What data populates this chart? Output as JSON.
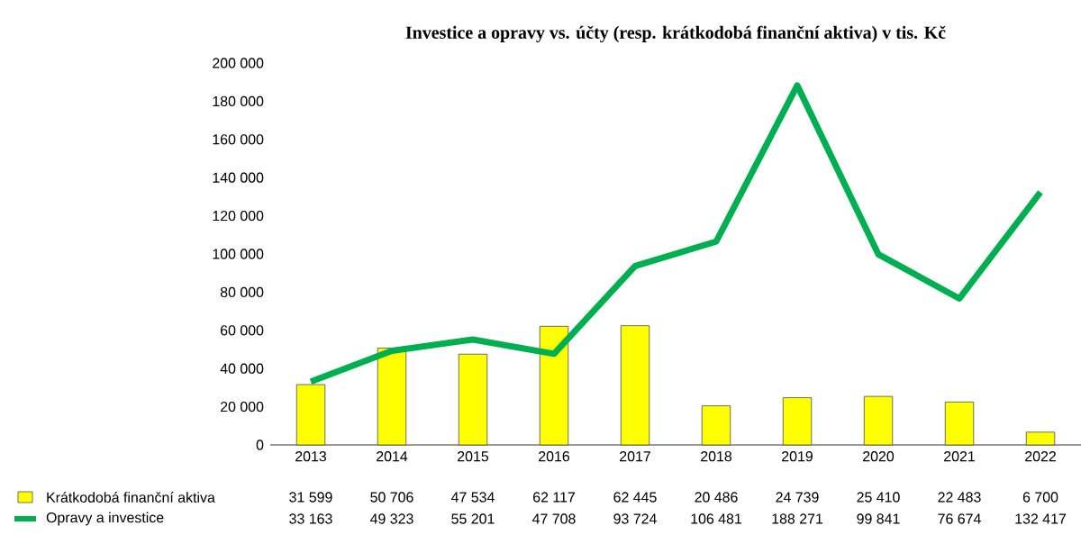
{
  "chart_data": {
    "type": "bar",
    "title": "Investice a opravy vs. účty (resp. krátkodobá finanční aktiva) v tis. Kč",
    "categories": [
      "2013",
      "2014",
      "2015",
      "2016",
      "2017",
      "2018",
      "2019",
      "2020",
      "2021",
      "2022"
    ],
    "series": [
      {
        "name": "Krátkodobá finanční aktiva",
        "color": "#ffff00",
        "values": [
          31599,
          50706,
          47534,
          62117,
          62445,
          20486,
          24739,
          25410,
          22483,
          6700
        ],
        "value_labels": [
          "31 599",
          "50 706",
          "47 534",
          "62 117",
          "62 445",
          "20 486",
          "24 739",
          "25 410",
          "22 483",
          "6 700"
        ]
      },
      {
        "name": "Opravy a investice",
        "type": "line",
        "color": "#00b050",
        "values": [
          33163,
          49323,
          55201,
          47708,
          93724,
          106481,
          188271,
          99841,
          76674,
          132417
        ],
        "value_labels": [
          "33 163",
          "49 323",
          "55 201",
          "47 708",
          "93 724",
          "106 481",
          "188 271",
          "99 841",
          "76 674",
          "132 417"
        ]
      }
    ],
    "ylim": [
      0,
      200000
    ],
    "yticks": [
      {
        "value": 0,
        "label": "0"
      },
      {
        "value": 20000,
        "label": "20 000"
      },
      {
        "value": 40000,
        "label": "40 000"
      },
      {
        "value": 60000,
        "label": "60 000"
      },
      {
        "value": 80000,
        "label": "80 000"
      },
      {
        "value": 100000,
        "label": "100 000"
      },
      {
        "value": 120000,
        "label": "120 000"
      },
      {
        "value": 140000,
        "label": "140 000"
      },
      {
        "value": 160000,
        "label": "160 000"
      },
      {
        "value": 180000,
        "label": "180 000"
      },
      {
        "value": 200000,
        "label": "200 000"
      }
    ],
    "legend": "bottom"
  }
}
